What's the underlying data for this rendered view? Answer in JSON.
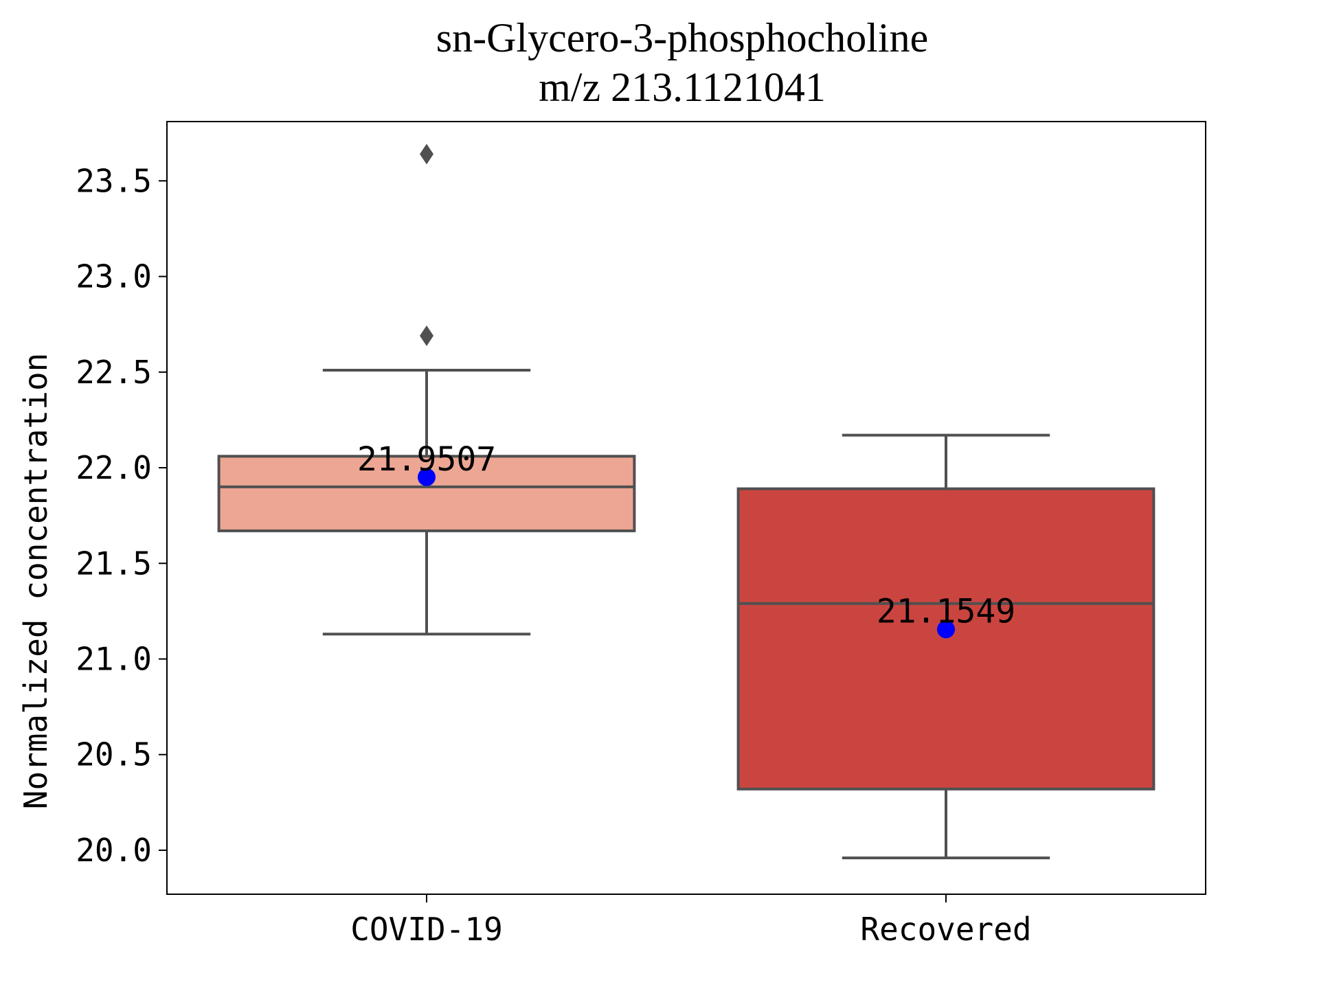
{
  "chart_data": {
    "type": "box",
    "title": "sn-Glycero-3-phosphocholine",
    "subtitle": "m/z  213.1121041",
    "xlabel": "",
    "ylabel": "Normalized concentration",
    "ylim": [
      19.77,
      23.81
    ],
    "yticks": [
      20.0,
      20.5,
      21.0,
      21.5,
      22.0,
      22.5,
      23.0,
      23.5
    ],
    "ytick_labels": [
      "20.0",
      "20.5",
      "21.0",
      "21.5",
      "22.0",
      "22.5",
      "23.0",
      "23.5"
    ],
    "grid": false,
    "categories": [
      "COVID-19",
      "Recovered"
    ],
    "boxes": [
      {
        "category": "COVID-19",
        "whisker_low": 21.13,
        "q1": 21.67,
        "median": 21.9,
        "q3": 22.06,
        "whisker_high": 22.51,
        "outliers": [
          22.69,
          23.64
        ],
        "mean": 21.9507,
        "mean_label": "21.9507",
        "color": "#eda693"
      },
      {
        "category": "Recovered",
        "whisker_low": 19.96,
        "q1": 20.32,
        "median": 21.29,
        "q3": 21.89,
        "whisker_high": 22.17,
        "outliers": [],
        "mean": 21.1549,
        "mean_label": "21.1549",
        "color": "#cb4540"
      }
    ],
    "colors": {
      "edge": "#505050",
      "mean_marker": "#0000ff",
      "axes": "#000000"
    }
  }
}
